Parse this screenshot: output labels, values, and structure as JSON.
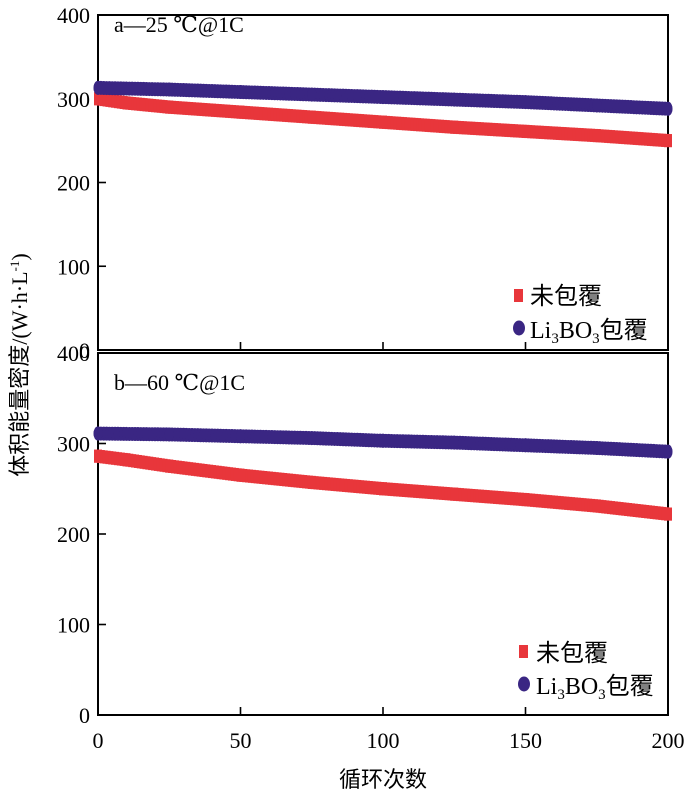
{
  "chart_data": [
    {
      "type": "scatter",
      "title": "a—25 ℃@1C",
      "xlabel": "循环次数",
      "ylabel": "体积能量密度/(W·h·L-1)",
      "xlim": [
        0,
        200
      ],
      "ylim": [
        0,
        400
      ],
      "x_ticks": [
        "0",
        "50",
        "100",
        "150",
        "200"
      ],
      "y_ticks": [
        "0",
        "100",
        "200",
        "300",
        "400"
      ],
      "legend_position": "bottom-right",
      "series": [
        {
          "name": "未包覆",
          "color": "#e8363b",
          "marker": "square",
          "x": [
            0,
            10,
            25,
            50,
            75,
            100,
            125,
            150,
            175,
            200
          ],
          "values": [
            300,
            295,
            290,
            284,
            278,
            272,
            266,
            261,
            256,
            250
          ]
        },
        {
          "name": "Li3BO3包覆",
          "color": "#3a2683",
          "marker": "circle",
          "x": [
            0,
            25,
            50,
            75,
            100,
            125,
            150,
            175,
            200
          ],
          "values": [
            313,
            311,
            308,
            305,
            302,
            299,
            296,
            292,
            288
          ]
        }
      ]
    },
    {
      "type": "scatter",
      "title": "b—60 ℃@1C",
      "xlabel": "循环次数",
      "ylabel": "体积能量密度/(W·h·L-1)",
      "xlim": [
        0,
        200
      ],
      "ylim": [
        0,
        400
      ],
      "x_ticks": [
        "0",
        "50",
        "100",
        "150",
        "200"
      ],
      "y_ticks": [
        "0",
        "100",
        "200",
        "300",
        "400"
      ],
      "legend_position": "bottom-right",
      "series": [
        {
          "name": "未包覆",
          "color": "#e8363b",
          "marker": "square",
          "x": [
            0,
            10,
            25,
            50,
            75,
            100,
            125,
            150,
            175,
            200
          ],
          "values": [
            286,
            282,
            275,
            265,
            257,
            250,
            244,
            238,
            231,
            222
          ]
        },
        {
          "name": "Li3BO3包覆",
          "color": "#3a2683",
          "marker": "circle",
          "x": [
            0,
            25,
            50,
            75,
            100,
            125,
            150,
            175,
            200
          ],
          "values": [
            311,
            310,
            308,
            306,
            303,
            301,
            298,
            295,
            291
          ]
        }
      ]
    }
  ],
  "legend_labels": {
    "uncoated": "未包覆",
    "coated_prefix": "Li",
    "coated_sub1": "3",
    "coated_mid": "BO",
    "coated_sub2": "3",
    "coated_suffix": "包覆"
  },
  "ylabel_main": "体积能量密度/(W·h·L",
  "ylabel_sup": "-1",
  "ylabel_close": ")"
}
